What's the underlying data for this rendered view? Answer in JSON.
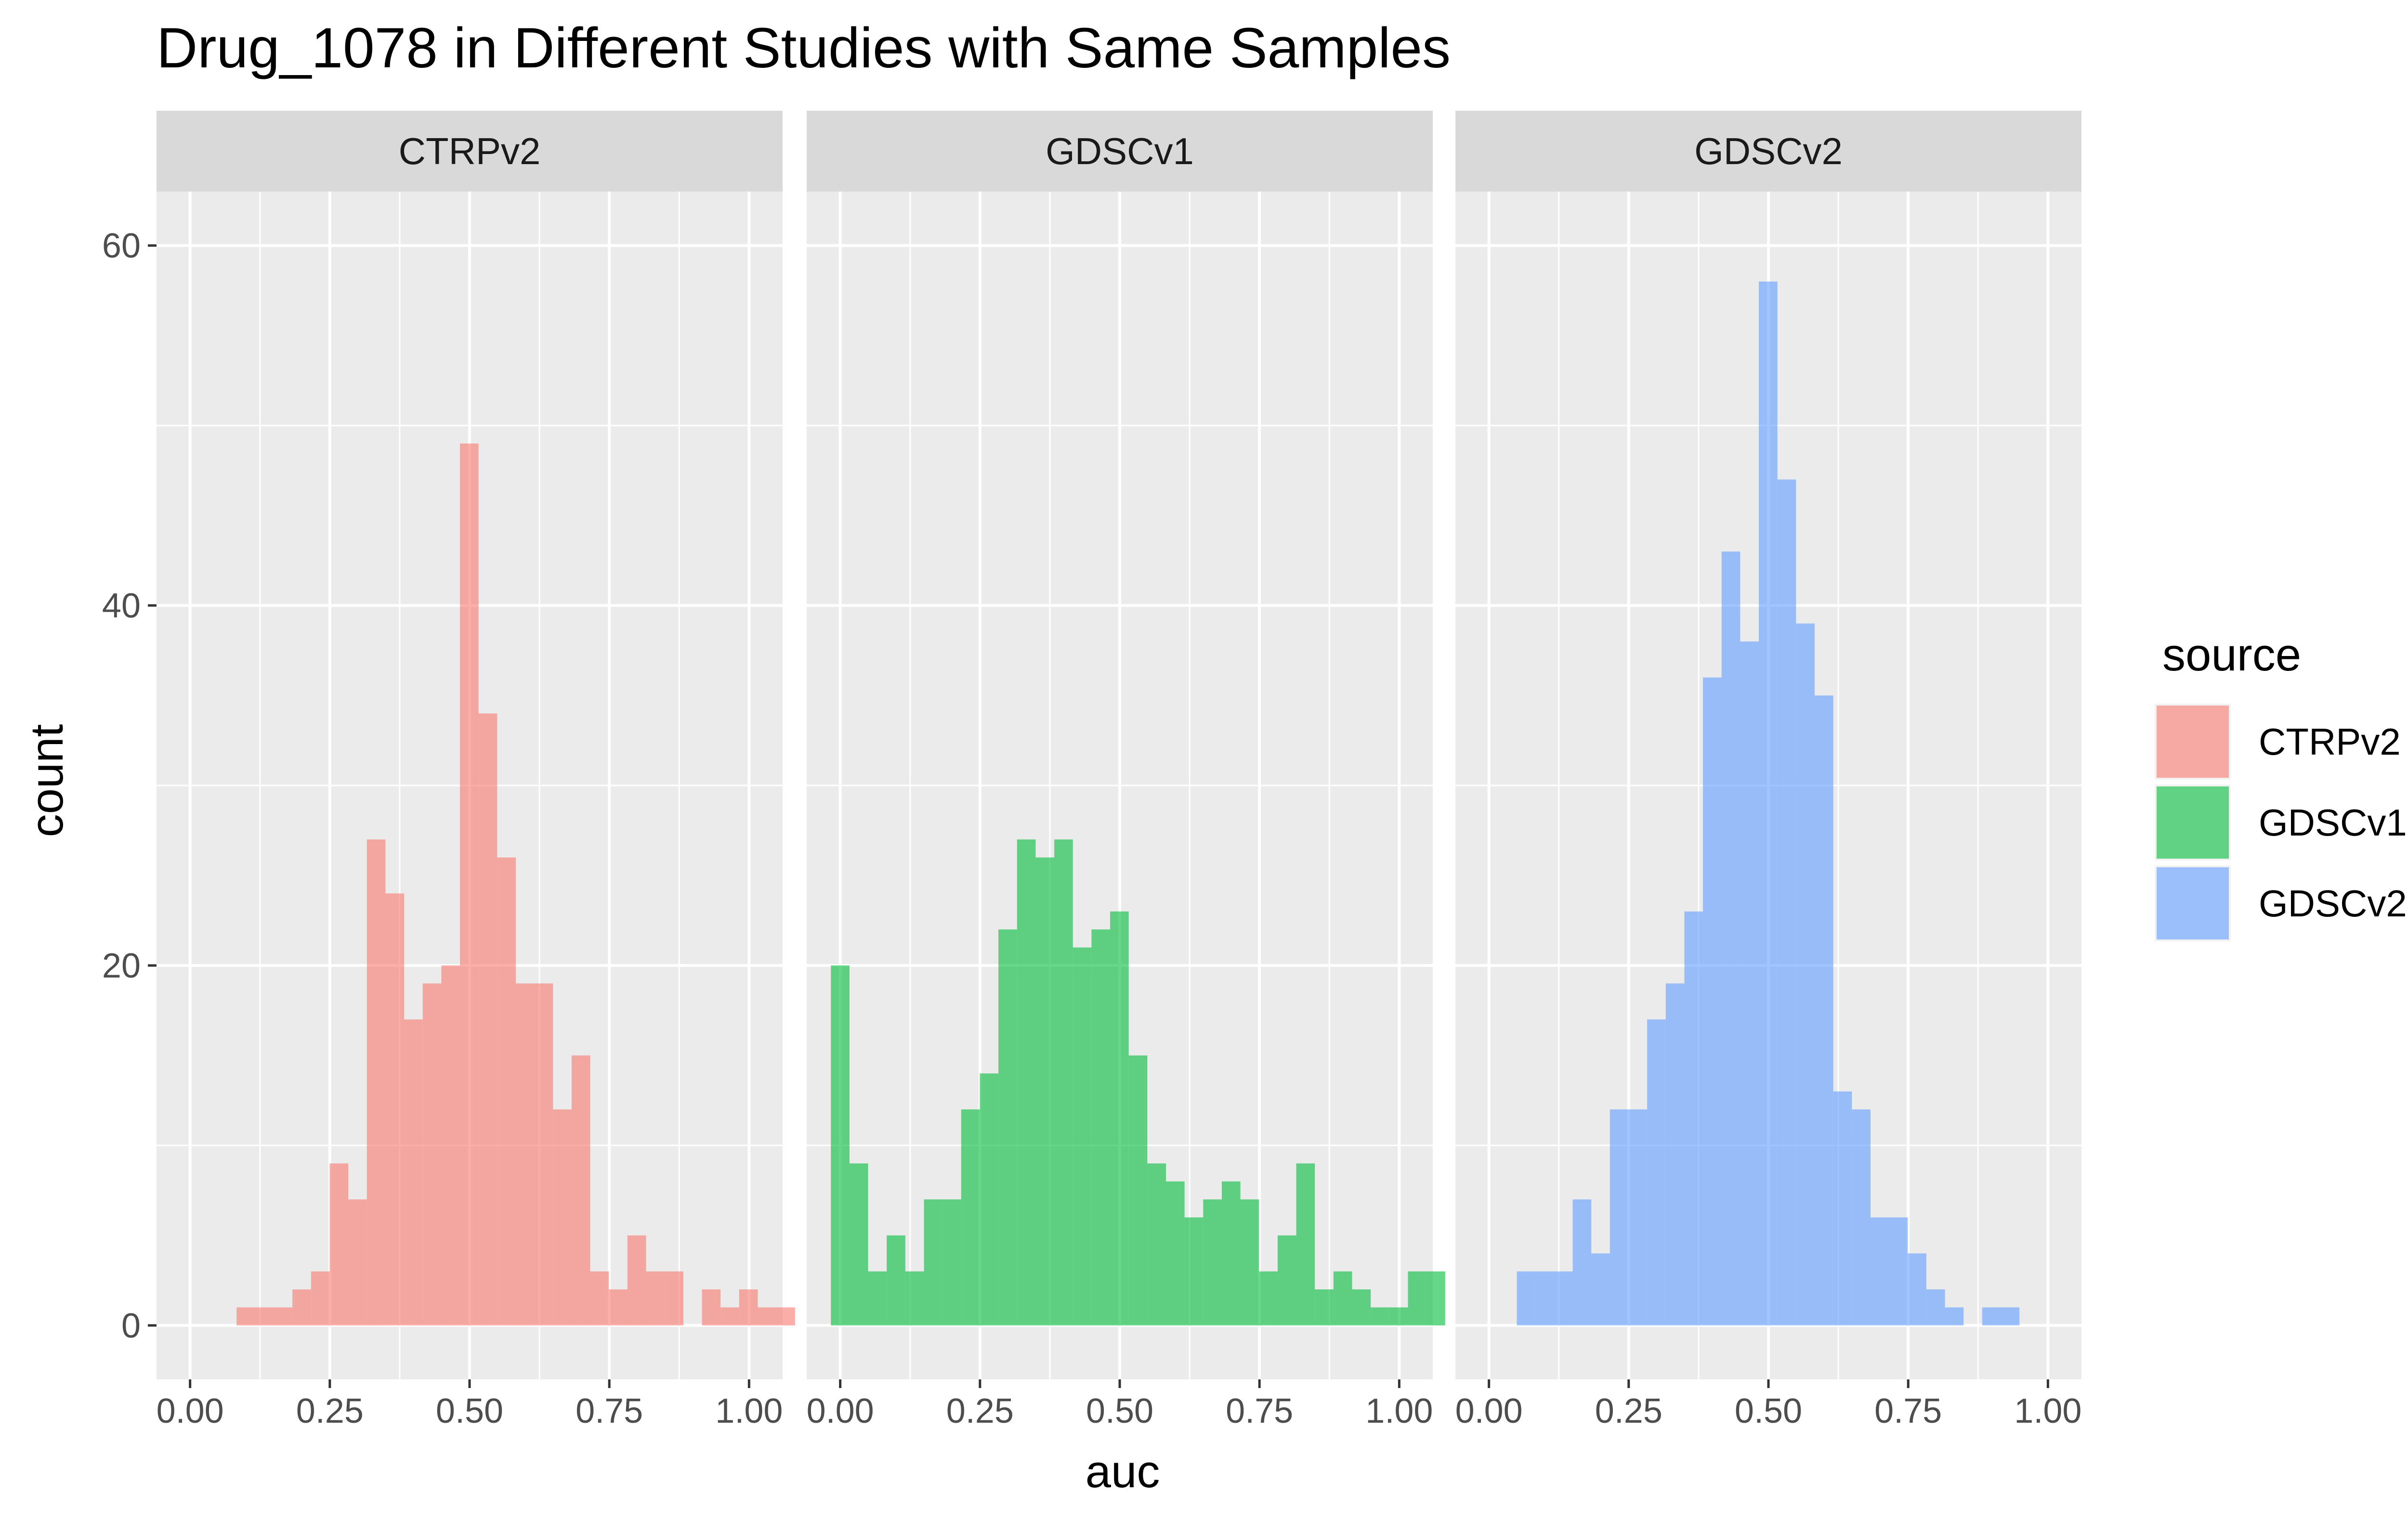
{
  "chart_data": {
    "type": "bar",
    "title": "Drug_1078 in Different Studies with Same Samples",
    "xlabel": "auc",
    "ylabel": "count",
    "xlim": [
      -0.06,
      1.06
    ],
    "ylim": [
      -3,
      63
    ],
    "x_ticks": [
      0,
      0.25,
      0.5,
      0.75,
      1.0
    ],
    "x_tick_labels": [
      "0.00",
      "0.25",
      "0.50",
      "0.75",
      "1.00"
    ],
    "y_ticks": [
      0,
      20,
      40,
      60
    ],
    "y_tick_labels": [
      "0",
      "20",
      "40",
      "60"
    ],
    "grid": true,
    "bin_width": 0.0333,
    "bin_start": -0.0167,
    "legend": {
      "title": "source",
      "position": "right",
      "entries": [
        "CTRPv2",
        "GDSCv1",
        "GDSCv2"
      ]
    },
    "series": [
      {
        "name": "CTRPv2",
        "color": "#F8766D",
        "counts": [
          0,
          0,
          0,
          1,
          1,
          1,
          2,
          3,
          9,
          7,
          27,
          24,
          17,
          19,
          20,
          49,
          34,
          26,
          19,
          19,
          12,
          15,
          3,
          2,
          5,
          3,
          3,
          0,
          2,
          1,
          2,
          1,
          1,
          0
        ]
      },
      {
        "name": "GDSCv1",
        "color": "#00BA38",
        "counts": [
          20,
          9,
          3,
          5,
          3,
          7,
          7,
          12,
          14,
          22,
          27,
          26,
          27,
          21,
          22,
          23,
          15,
          9,
          8,
          6,
          7,
          8,
          7,
          3,
          5,
          9,
          2,
          3,
          2,
          1,
          1,
          3,
          3
        ]
      },
      {
        "name": "GDSCv2",
        "color": "#619CFF",
        "counts": [
          0,
          0,
          3,
          3,
          3,
          7,
          4,
          12,
          12,
          17,
          19,
          23,
          36,
          43,
          38,
          58,
          47,
          39,
          35,
          13,
          12,
          6,
          6,
          4,
          2,
          1,
          0,
          1,
          1,
          0,
          0,
          0,
          0,
          0,
          0
        ]
      }
    ]
  }
}
